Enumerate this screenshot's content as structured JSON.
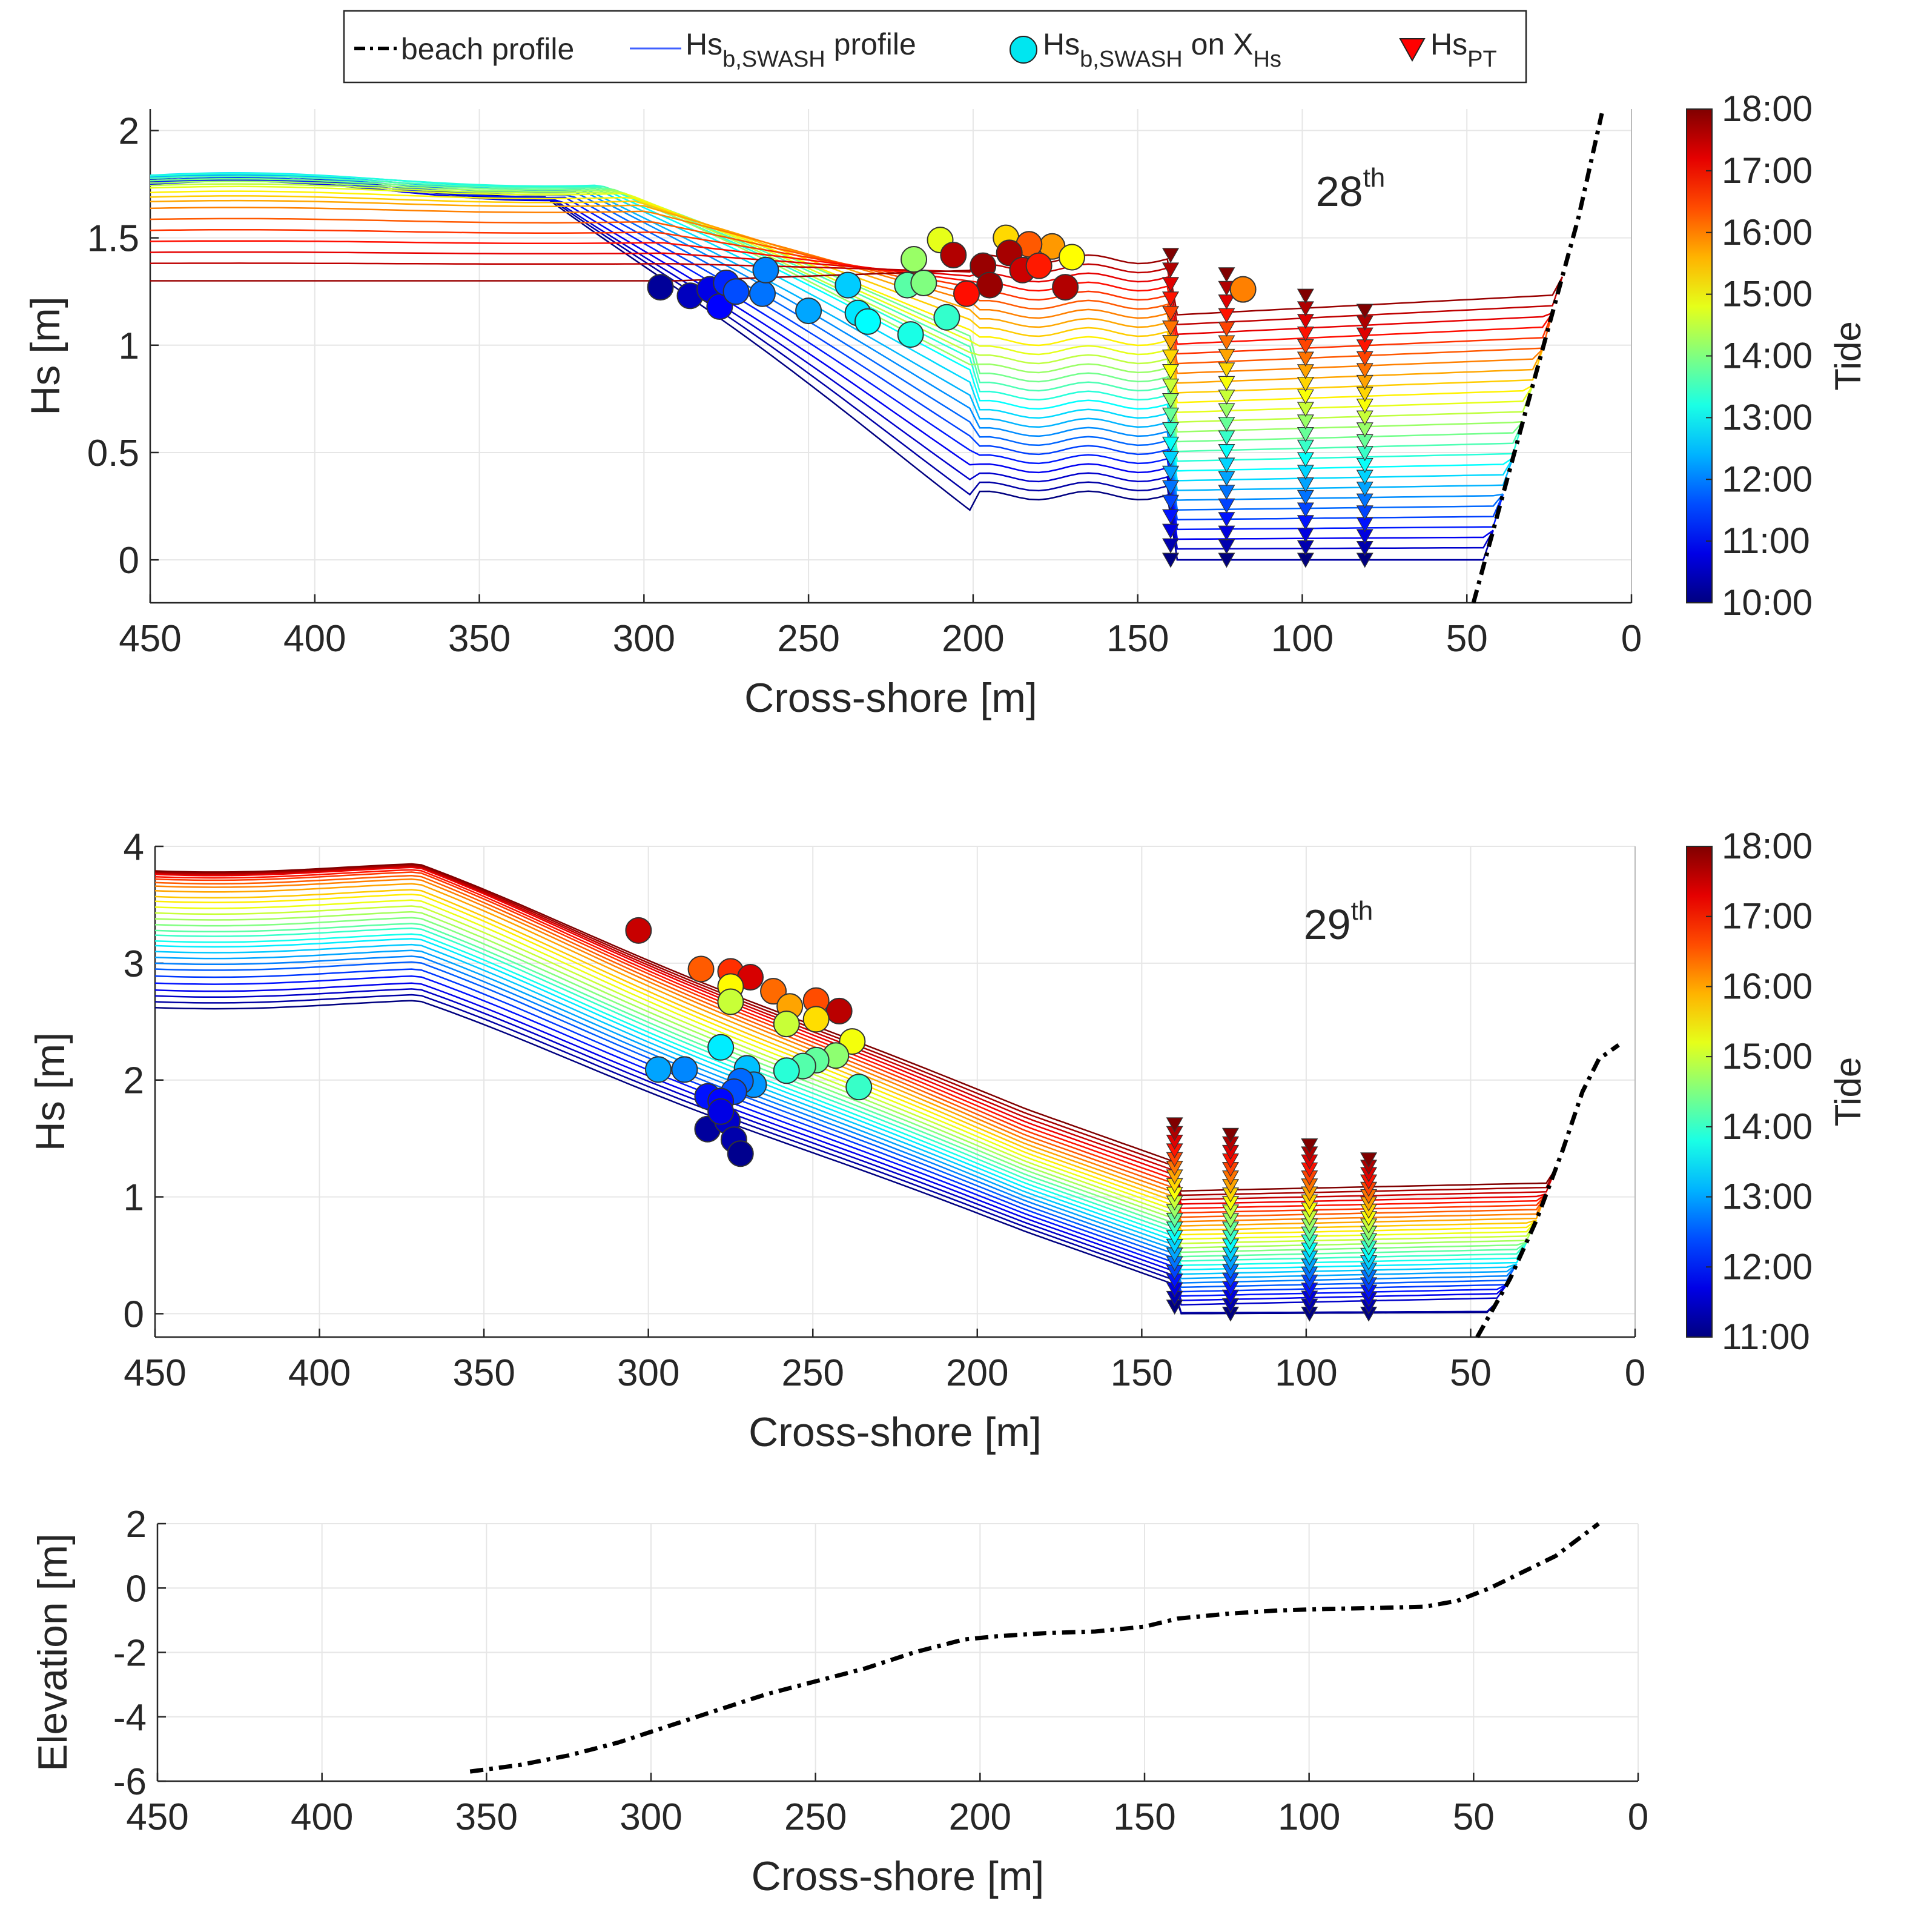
{
  "legend": {
    "items": [
      {
        "kind": "beach",
        "label": "beach profile"
      },
      {
        "kind": "line",
        "label": "Hs",
        "sub": "b,SWASH",
        "suffix": " profile"
      },
      {
        "kind": "circle",
        "label": "Hs",
        "sub": "b,SWASH",
        "suffix": " on X",
        "sub2": "Hs"
      },
      {
        "kind": "triangle",
        "label": "Hs",
        "sub": "PT"
      }
    ]
  },
  "colors": {
    "beach": "#000000",
    "legend_line": "#4060ff",
    "legend_circle": "#00e6f0",
    "legend_triangle": "#ff0000",
    "axis": "#262626",
    "grid": "#e6e6e6"
  },
  "chart_data": [
    {
      "id": "p28",
      "type": "line",
      "title": "28",
      "title_sup": "th",
      "xlabel": "Cross-shore [m]",
      "ylabel": "Hs  [m]",
      "xlim": [
        450,
        0
      ],
      "ylim": [
        -0.2,
        2.1
      ],
      "xticks": [
        450,
        400,
        350,
        300,
        250,
        200,
        150,
        100,
        50,
        0
      ],
      "yticks": [
        0,
        0.5,
        1,
        1.5,
        2
      ],
      "ytick_labels": [
        "0",
        "0.5",
        "1",
        "1.5",
        "2"
      ],
      "colorbar": {
        "label": "Tide",
        "range": [
          "10:00",
          "18:00"
        ],
        "ticks": [
          "10:00",
          "11:00",
          "12:00",
          "13:00",
          "14:00",
          "15:00",
          "16:00",
          "17:00",
          "18:00"
        ],
        "tmin": 10,
        "tmax": 18
      },
      "beach_profile": {
        "x": [
          48,
          40,
          32,
          24,
          16,
          9
        ],
        "y": [
          -0.2,
          0.25,
          0.7,
          1.15,
          1.6,
          2.08
        ]
      },
      "profile_model": {
        "times": [
          10.0,
          10.3,
          10.6,
          10.9,
          11.2,
          11.5,
          11.8,
          12.1,
          12.4,
          12.7,
          13.0,
          13.3,
          13.6,
          13.9,
          14.2,
          14.5,
          14.8,
          15.1,
          15.4,
          15.7,
          16.0,
          16.3,
          16.6,
          16.9,
          17.2,
          17.5,
          17.8
        ],
        "offshore_hs": [
          1.74,
          1.73,
          1.72,
          1.72,
          1.73,
          1.74,
          1.75,
          1.76,
          1.76,
          1.77,
          1.77,
          1.77,
          1.76,
          1.75,
          1.74,
          1.73,
          1.72,
          1.7,
          1.68,
          1.66,
          1.63,
          1.58,
          1.53,
          1.48,
          1.43,
          1.38,
          1.3
        ]
      },
      "breaking_points": [
        {
          "x": 295,
          "hs": 1.27,
          "t": 10.2
        },
        {
          "x": 286,
          "hs": 1.23,
          "t": 10.5
        },
        {
          "x": 280,
          "hs": 1.26,
          "t": 10.8
        },
        {
          "x": 277,
          "hs": 1.18,
          "t": 11.0
        },
        {
          "x": 275,
          "hs": 1.29,
          "t": 11.3
        },
        {
          "x": 272,
          "hs": 1.25,
          "t": 11.6
        },
        {
          "x": 264,
          "hs": 1.24,
          "t": 11.9
        },
        {
          "x": 263,
          "hs": 1.35,
          "t": 12.0
        },
        {
          "x": 250,
          "hs": 1.16,
          "t": 12.3
        },
        {
          "x": 238,
          "hs": 1.28,
          "t": 12.6
        },
        {
          "x": 235,
          "hs": 1.15,
          "t": 12.8
        },
        {
          "x": 232,
          "hs": 1.11,
          "t": 13.0
        },
        {
          "x": 219,
          "hs": 1.05,
          "t": 13.2
        },
        {
          "x": 208,
          "hs": 1.13,
          "t": 13.4
        },
        {
          "x": 220,
          "hs": 1.28,
          "t": 13.7
        },
        {
          "x": 215,
          "hs": 1.29,
          "t": 14.0
        },
        {
          "x": 218,
          "hs": 1.4,
          "t": 14.2
        },
        {
          "x": 210,
          "hs": 1.49,
          "t": 14.8
        },
        {
          "x": 190,
          "hs": 1.5,
          "t": 15.3
        },
        {
          "x": 176,
          "hs": 1.46,
          "t": 15.8
        },
        {
          "x": 183,
          "hs": 1.47,
          "t": 16.3
        },
        {
          "x": 170,
          "hs": 1.41,
          "t": 15.0
        },
        {
          "x": 206,
          "hs": 1.42,
          "t": 17.6
        },
        {
          "x": 197,
          "hs": 1.37,
          "t": 17.8
        },
        {
          "x": 189,
          "hs": 1.43,
          "t": 17.7
        },
        {
          "x": 185,
          "hs": 1.35,
          "t": 17.4
        },
        {
          "x": 195,
          "hs": 1.28,
          "t": 17.8
        },
        {
          "x": 202,
          "hs": 1.24,
          "t": 16.9
        },
        {
          "x": 180,
          "hs": 1.37,
          "t": 16.8
        },
        {
          "x": 172,
          "hs": 1.27,
          "t": 17.6
        },
        {
          "x": 118,
          "hs": 1.26,
          "t": 16.0
        }
      ],
      "pt_stations": [
        {
          "x": 140,
          "hs_min": 0.0,
          "hs_max": 1.42
        },
        {
          "x": 123,
          "hs_min": 0.0,
          "hs_max": 1.33
        },
        {
          "x": 99,
          "hs_min": 0.0,
          "hs_max": 1.23
        },
        {
          "x": 81,
          "hs_min": 0.0,
          "hs_max": 1.16
        }
      ]
    },
    {
      "id": "p29",
      "type": "line",
      "title": "29",
      "title_sup": "th",
      "xlabel": "Cross-shore [m]",
      "ylabel": "Hs  [m]",
      "xlim": [
        450,
        0
      ],
      "ylim": [
        -0.2,
        4.0
      ],
      "xticks": [
        450,
        400,
        350,
        300,
        250,
        200,
        150,
        100,
        50,
        0
      ],
      "yticks": [
        0,
        1,
        2,
        3,
        4
      ],
      "ytick_labels": [
        "0",
        "1",
        "2",
        "3",
        "4"
      ],
      "colorbar": {
        "label": "Tide",
        "range": [
          "11:00",
          "18:00"
        ],
        "ticks": [
          "11:00",
          "12:00",
          "13:00",
          "14:00",
          "15:00",
          "16:00",
          "17:00",
          "18:00"
        ],
        "tmin": 11,
        "tmax": 18
      },
      "beach_profile": {
        "x": [
          48,
          38,
          30,
          22,
          16,
          11,
          5
        ],
        "y": [
          -0.2,
          0.3,
          0.8,
          1.4,
          1.9,
          2.18,
          2.3
        ]
      },
      "profile_model": {
        "times": [
          11.0,
          11.25,
          11.5,
          11.75,
          12.0,
          12.25,
          12.5,
          12.75,
          13.0,
          13.25,
          13.5,
          13.75,
          14.0,
          14.25,
          14.5,
          14.75,
          15.0,
          15.25,
          15.5,
          15.75,
          16.0,
          16.25,
          16.5,
          16.75,
          17.0,
          17.25,
          17.5,
          17.75,
          18.0
        ],
        "offshore_hs": [
          2.65,
          2.7,
          2.75,
          2.8,
          2.86,
          2.92,
          2.98,
          3.03,
          3.08,
          3.13,
          3.18,
          3.22,
          3.27,
          3.31,
          3.36,
          3.41,
          3.46,
          3.51,
          3.56,
          3.6,
          3.65,
          3.69,
          3.72,
          3.75,
          3.77,
          3.79,
          3.8,
          3.81,
          3.82
        ]
      },
      "breaking_points": [
        {
          "x": 303,
          "hs": 3.28,
          "t": 17.5
        },
        {
          "x": 284,
          "hs": 2.95,
          "t": 16.5
        },
        {
          "x": 275,
          "hs": 2.93,
          "t": 16.8
        },
        {
          "x": 269,
          "hs": 2.88,
          "t": 17.4
        },
        {
          "x": 262,
          "hs": 2.76,
          "t": 16.4
        },
        {
          "x": 249,
          "hs": 2.68,
          "t": 16.6
        },
        {
          "x": 242,
          "hs": 2.59,
          "t": 17.6
        },
        {
          "x": 275,
          "hs": 2.8,
          "t": 15.4
        },
        {
          "x": 275,
          "hs": 2.67,
          "t": 15.0
        },
        {
          "x": 257,
          "hs": 2.63,
          "t": 16.0
        },
        {
          "x": 249,
          "hs": 2.52,
          "t": 15.6
        },
        {
          "x": 258,
          "hs": 2.48,
          "t": 15.0
        },
        {
          "x": 238,
          "hs": 2.33,
          "t": 15.3
        },
        {
          "x": 243,
          "hs": 2.21,
          "t": 14.6
        },
        {
          "x": 249,
          "hs": 2.17,
          "t": 14.3
        },
        {
          "x": 253,
          "hs": 2.12,
          "t": 14.2
        },
        {
          "x": 258,
          "hs": 2.08,
          "t": 13.9
        },
        {
          "x": 236,
          "hs": 1.94,
          "t": 14.0
        },
        {
          "x": 278,
          "hs": 2.28,
          "t": 13.5
        },
        {
          "x": 297,
          "hs": 2.09,
          "t": 13.0
        },
        {
          "x": 289,
          "hs": 2.09,
          "t": 12.8
        },
        {
          "x": 270,
          "hs": 2.1,
          "t": 13.2
        },
        {
          "x": 268,
          "hs": 1.96,
          "t": 12.9
        },
        {
          "x": 272,
          "hs": 1.99,
          "t": 12.6
        },
        {
          "x": 274,
          "hs": 1.9,
          "t": 12.4
        },
        {
          "x": 282,
          "hs": 1.86,
          "t": 12.0
        },
        {
          "x": 278,
          "hs": 1.82,
          "t": 11.9
        },
        {
          "x": 282,
          "hs": 1.58,
          "t": 11.2
        },
        {
          "x": 276,
          "hs": 1.65,
          "t": 11.5
        },
        {
          "x": 278,
          "hs": 1.73,
          "t": 11.7
        },
        {
          "x": 274,
          "hs": 1.49,
          "t": 11.3
        },
        {
          "x": 272,
          "hs": 1.37,
          "t": 11.1
        }
      ],
      "pt_stations": [
        {
          "x": 140,
          "hs_min": 0.06,
          "hs_max": 1.62
        },
        {
          "x": 123,
          "hs_min": 0.0,
          "hs_max": 1.53
        },
        {
          "x": 99,
          "hs_min": 0.0,
          "hs_max": 1.44
        },
        {
          "x": 81,
          "hs_min": 0.0,
          "hs_max": 1.32
        }
      ]
    },
    {
      "id": "elev",
      "type": "line",
      "xlabel": "Cross-shore [m]",
      "ylabel": "Elevation [m]",
      "xlim": [
        450,
        0
      ],
      "ylim": [
        -6,
        2
      ],
      "xticks": [
        450,
        400,
        350,
        300,
        250,
        200,
        150,
        100,
        50,
        0
      ],
      "yticks": [
        -6,
        -4,
        -2,
        0,
        2
      ],
      "ytick_labels": [
        "-6",
        "-4",
        "-2",
        "0",
        "2"
      ],
      "beach_profile": {
        "x": [
          355,
          340,
          325,
          310,
          295,
          280,
          265,
          250,
          235,
          220,
          205,
          195,
          180,
          165,
          150,
          140,
          125,
          110,
          95,
          80,
          65,
          55,
          45,
          35,
          25,
          12
        ],
        "y": [
          -5.7,
          -5.5,
          -5.2,
          -4.8,
          -4.3,
          -3.8,
          -3.3,
          -2.9,
          -2.5,
          -2.0,
          -1.6,
          -1.5,
          -1.4,
          -1.35,
          -1.2,
          -0.95,
          -0.8,
          -0.7,
          -0.65,
          -0.62,
          -0.58,
          -0.4,
          0.0,
          0.5,
          1.0,
          2.0
        ]
      }
    }
  ]
}
